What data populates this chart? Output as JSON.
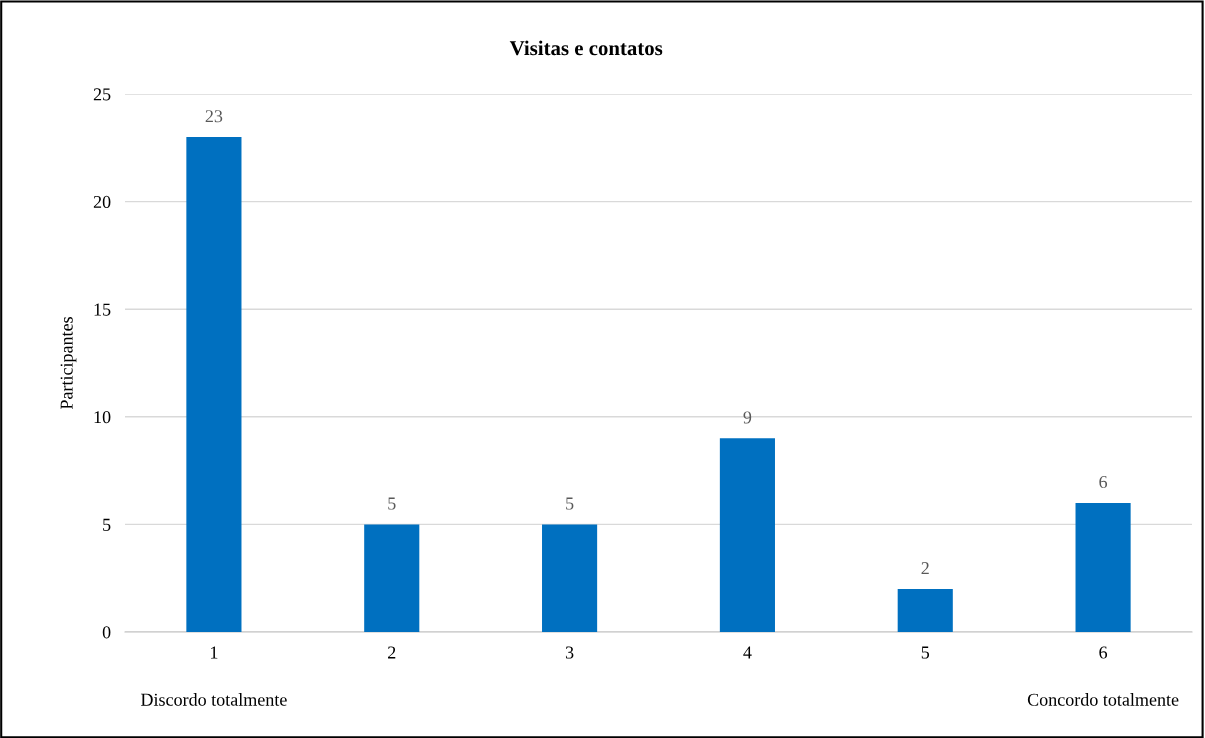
{
  "chart_data": {
    "type": "bar",
    "title": "Visitas e contatos",
    "ylabel": "Participantes",
    "categories": [
      "1",
      "2",
      "3",
      "4",
      "5",
      "6"
    ],
    "values": [
      23,
      5,
      5,
      9,
      2,
      6
    ],
    "color": "#0070c0",
    "ylim": [
      0,
      25
    ],
    "yticks": [
      0,
      5,
      10,
      15,
      20,
      25
    ],
    "grid": "y",
    "data_labels": true,
    "legend": false,
    "annotations": [
      "Discordo totalmente",
      "Concordo totalmente"
    ]
  }
}
